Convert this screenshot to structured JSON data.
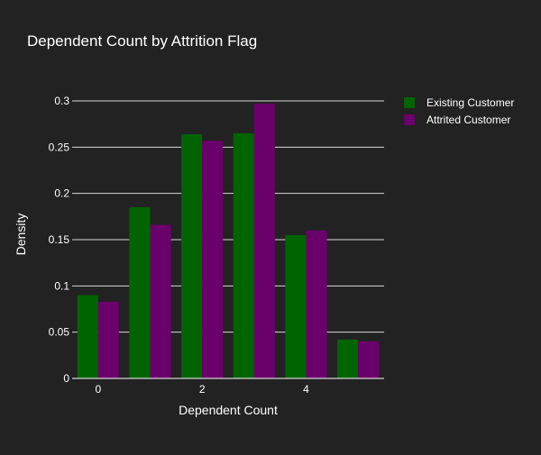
{
  "chart_data": {
    "type": "bar",
    "title": "Dependent Count by Attrition Flag",
    "xlabel": "Dependent Count",
    "ylabel": "Density",
    "categories": [
      0,
      1,
      2,
      3,
      4,
      5
    ],
    "x_tick_labels": [
      {
        "x": 0,
        "label": "0"
      },
      {
        "x": 2,
        "label": "2"
      },
      {
        "x": 4,
        "label": "4"
      }
    ],
    "y_tick_labels": [
      {
        "y": 0,
        "label": "0"
      },
      {
        "y": 0.05,
        "label": "0.05"
      },
      {
        "y": 0.1,
        "label": "0.1"
      },
      {
        "y": 0.15,
        "label": "0.15"
      },
      {
        "y": 0.2,
        "label": "0.2"
      },
      {
        "y": 0.25,
        "label": "0.25"
      },
      {
        "y": 0.3,
        "label": "0.3"
      }
    ],
    "xlim": [
      -0.5,
      5.5
    ],
    "ylim": [
      0,
      0.3
    ],
    "grid": true,
    "legend_position": "top-right",
    "series": [
      {
        "name": "Existing Customer",
        "color": "#006400",
        "values": [
          0.09,
          0.185,
          0.264,
          0.265,
          0.155,
          0.042
        ]
      },
      {
        "name": "Attrited Customer",
        "color": "#6a006a",
        "values": [
          0.083,
          0.166,
          0.257,
          0.297,
          0.16,
          0.04
        ]
      }
    ]
  }
}
